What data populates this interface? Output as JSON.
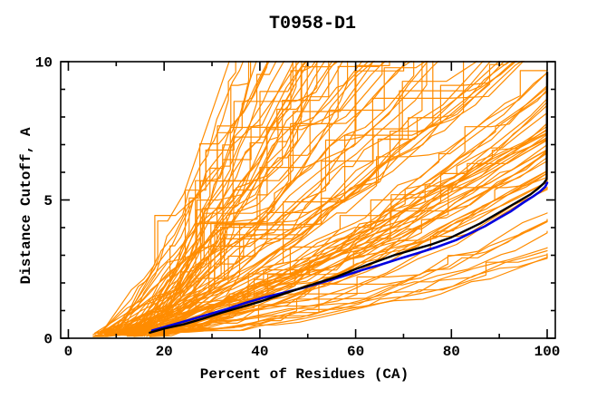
{
  "figure": {
    "background": "#FFFFFF"
  },
  "chart_data": {
    "type": "line",
    "title": "T0958-D1",
    "xlabel": "Percent of Residues (CA)",
    "ylabel": "Distance Cutoff, A",
    "xlim": [
      0,
      100
    ],
    "ylim": [
      0,
      10
    ],
    "x_major_ticks": [
      0,
      20,
      40,
      60,
      80,
      100
    ],
    "x_minor_ticks": [
      10,
      30,
      50,
      70,
      90
    ],
    "y_major_ticks": [
      0,
      5,
      10
    ],
    "y_minor_ticks": [
      1,
      2,
      3,
      4,
      6,
      7,
      8,
      9
    ],
    "grid": false,
    "legend": false,
    "colors": {
      "ensemble": "#FF8C00",
      "highlight_primary": "#000000",
      "highlight_secondary": "#0000E0"
    },
    "series": [
      {
        "name": "black_highlight_curve",
        "color": "#000000",
        "points": [
          [
            17,
            0.2
          ],
          [
            20,
            0.35
          ],
          [
            24,
            0.5
          ],
          [
            28,
            0.7
          ],
          [
            32,
            0.92
          ],
          [
            36,
            1.12
          ],
          [
            40,
            1.32
          ],
          [
            44,
            1.55
          ],
          [
            48,
            1.78
          ],
          [
            52,
            2.0
          ],
          [
            56,
            2.22
          ],
          [
            60,
            2.5
          ],
          [
            64,
            2.75
          ],
          [
            68,
            3.0
          ],
          [
            72,
            3.2
          ],
          [
            76,
            3.4
          ],
          [
            80,
            3.65
          ],
          [
            83,
            3.9
          ],
          [
            86,
            4.15
          ],
          [
            89,
            4.45
          ],
          [
            92,
            4.75
          ],
          [
            94.5,
            5.0
          ],
          [
            96.5,
            5.2
          ],
          [
            98,
            5.4
          ],
          [
            99.3,
            5.6
          ],
          [
            99.9,
            5.75
          ],
          [
            100,
            9.62
          ]
        ]
      },
      {
        "name": "blue_highlight_curve",
        "color": "#0000E0",
        "points": [
          [
            17.5,
            0.28
          ],
          [
            21,
            0.45
          ],
          [
            25,
            0.65
          ],
          [
            29,
            0.85
          ],
          [
            33,
            1.05
          ],
          [
            37,
            1.28
          ],
          [
            41,
            1.48
          ],
          [
            45,
            1.65
          ],
          [
            49,
            1.82
          ],
          [
            53,
            2.02
          ],
          [
            57,
            2.22
          ],
          [
            61,
            2.45
          ],
          [
            65,
            2.65
          ],
          [
            69,
            2.87
          ],
          [
            73,
            3.08
          ],
          [
            77,
            3.3
          ],
          [
            81,
            3.55
          ],
          [
            84,
            3.8
          ],
          [
            87,
            4.05
          ],
          [
            90,
            4.35
          ],
          [
            92.5,
            4.6
          ],
          [
            95,
            4.9
          ],
          [
            97,
            5.12
          ],
          [
            98.5,
            5.3
          ],
          [
            99.6,
            5.48
          ],
          [
            100,
            5.62
          ]
        ]
      }
    ],
    "ensemble_spec": {
      "name": "orange_model_curves",
      "count": 110,
      "seed": 958,
      "x_start_range": [
        5,
        18
      ],
      "y_start_range": [
        0.05,
        0.3
      ],
      "vertical_jump_prob": 0.17,
      "segments": [
        12,
        18
      ],
      "groups": [
        {
          "type": "hits_top",
          "fraction": 0.55,
          "x_top_range": [
            34,
            99
          ]
        },
        {
          "type": "ends_right_high",
          "fraction": 0.34,
          "y_end_range": [
            5.5,
            9.6
          ]
        },
        {
          "type": "ends_right_low",
          "fraction": 0.11,
          "y_end_range": [
            2.8,
            5.5
          ]
        }
      ]
    }
  }
}
